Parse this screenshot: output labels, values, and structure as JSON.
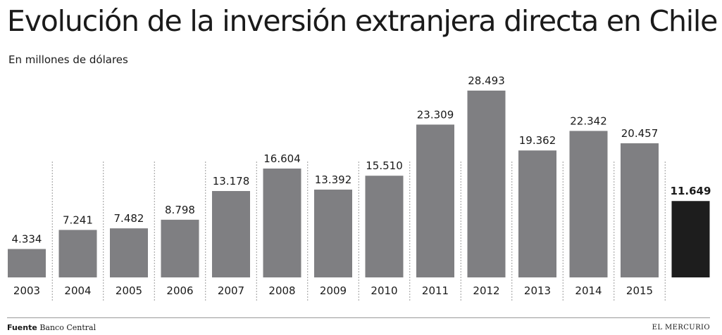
{
  "header": {
    "title": "Evolución de la inversión extranjera directa en Chile",
    "subtitle": "En millones de dólares"
  },
  "footer": {
    "source_label": "Fuente",
    "source_value": "Banco Central",
    "brand": "EL MERCURIO"
  },
  "colors": {
    "bar": "#7f7f82",
    "bar_highlight": "#1d1d1d",
    "text": "#1a1a1a",
    "separator": "#9a9a9a"
  },
  "chart_data": {
    "type": "bar",
    "categories": [
      "2003",
      "2004",
      "2005",
      "2006",
      "2007",
      "2008",
      "2009",
      "2010",
      "2011",
      "2012",
      "2013",
      "2014",
      "2015",
      ""
    ],
    "value_labels": [
      "4.334",
      "7.241",
      "7.482",
      "8.798",
      "13.178",
      "16.604",
      "13.392",
      "15.510",
      "23.309",
      "28.493",
      "19.362",
      "22.342",
      "20.457",
      "11.649"
    ],
    "values": [
      4334,
      7241,
      7482,
      8798,
      13178,
      16604,
      13392,
      15510,
      23309,
      28493,
      19362,
      22342,
      20457,
      11649
    ],
    "highlight_index": 13,
    "ylim": [
      0,
      28493
    ],
    "grid": false,
    "title": "Evolución de la inversión extranjera directa en Chile",
    "subtitle": "En millones de dólares",
    "xlabel": "",
    "ylabel": ""
  }
}
